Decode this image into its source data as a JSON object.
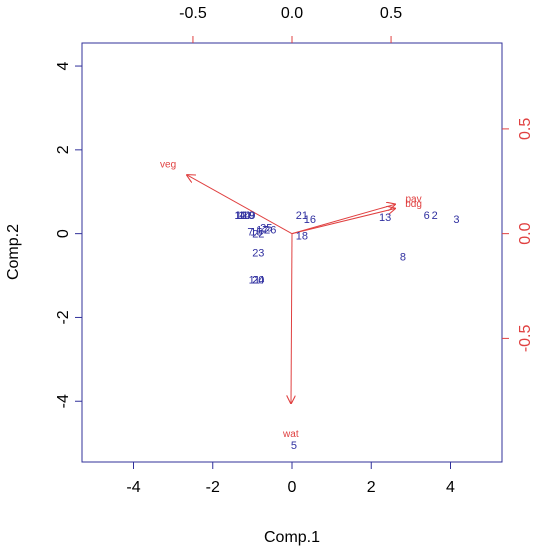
{
  "chart_data": {
    "type": "biplot",
    "xlabel": "Comp.1",
    "ylabel": "Comp.2",
    "xlim": [
      -5.3,
      5.3
    ],
    "ylim": [
      -5.45,
      4.55
    ],
    "xticks": [
      -4,
      -2,
      0,
      2,
      4
    ],
    "xtick_labels": [
      "-4",
      "-2",
      "0",
      "2",
      "4"
    ],
    "yticks": [
      -4,
      -2,
      0,
      2,
      4
    ],
    "ytick_labels": [
      "-4",
      "-2",
      "0",
      "2",
      "4"
    ],
    "top_ticks": [
      -0.5,
      0.0,
      0.5
    ],
    "top_tick_labels": [
      "-0.5",
      "0.0",
      "0.5"
    ],
    "right_ticks": [
      -0.5,
      0.0,
      0.5
    ],
    "right_tick_labels": [
      "-0.5",
      "0.0",
      "0.5"
    ],
    "loading_scale": 5.0,
    "colors": {
      "points": "#3030a0",
      "arrows": "#e04040",
      "frame": "#30309a"
    },
    "points": [
      {
        "label": "1",
        "x": -1.35,
        "y": 0.45
      },
      {
        "label": "2",
        "x": 3.6,
        "y": 0.45
      },
      {
        "label": "3",
        "x": 4.15,
        "y": 0.35
      },
      {
        "label": "4",
        "x": -1.25,
        "y": 0.45
      },
      {
        "label": "5",
        "x": 0.05,
        "y": -5.05
      },
      {
        "label": "6",
        "x": 3.4,
        "y": 0.45
      },
      {
        "label": "7",
        "x": -1.05,
        "y": 0.05
      },
      {
        "label": "8",
        "x": 2.8,
        "y": -0.55
      },
      {
        "label": "9",
        "x": -1.0,
        "y": 0.45
      },
      {
        "label": "10",
        "x": -1.2,
        "y": 0.45
      },
      {
        "label": "11",
        "x": -0.95,
        "y": -1.1
      },
      {
        "label": "12",
        "x": -1.3,
        "y": 0.45
      },
      {
        "label": "13",
        "x": 2.35,
        "y": 0.4
      },
      {
        "label": "14",
        "x": -1.2,
        "y": 0.45
      },
      {
        "label": "15",
        "x": -0.9,
        "y": 0.05
      },
      {
        "label": "16",
        "x": 0.45,
        "y": 0.35
      },
      {
        "label": "17",
        "x": -0.75,
        "y": 0.1
      },
      {
        "label": "18",
        "x": 0.25,
        "y": -0.05
      },
      {
        "label": "19",
        "x": -1.1,
        "y": 0.45
      },
      {
        "label": "20",
        "x": -0.85,
        "y": -1.1
      },
      {
        "label": "21",
        "x": 0.25,
        "y": 0.45
      },
      {
        "label": "22",
        "x": -0.85,
        "y": 0.0
      },
      {
        "label": "23",
        "x": -0.85,
        "y": -0.45
      },
      {
        "label": "24",
        "x": -0.85,
        "y": -1.1
      },
      {
        "label": "25",
        "x": -0.65,
        "y": 0.15
      },
      {
        "label": "26",
        "x": -0.55,
        "y": 0.1
      }
    ],
    "loadings": [
      {
        "label": "veg",
        "x": -0.53,
        "y": 0.28
      },
      {
        "label": "pav",
        "x": 0.52,
        "y": 0.14
      },
      {
        "label": "bdg",
        "x": 0.52,
        "y": 0.12
      },
      {
        "label": "wat",
        "x": -0.005,
        "y": -0.81
      }
    ]
  }
}
